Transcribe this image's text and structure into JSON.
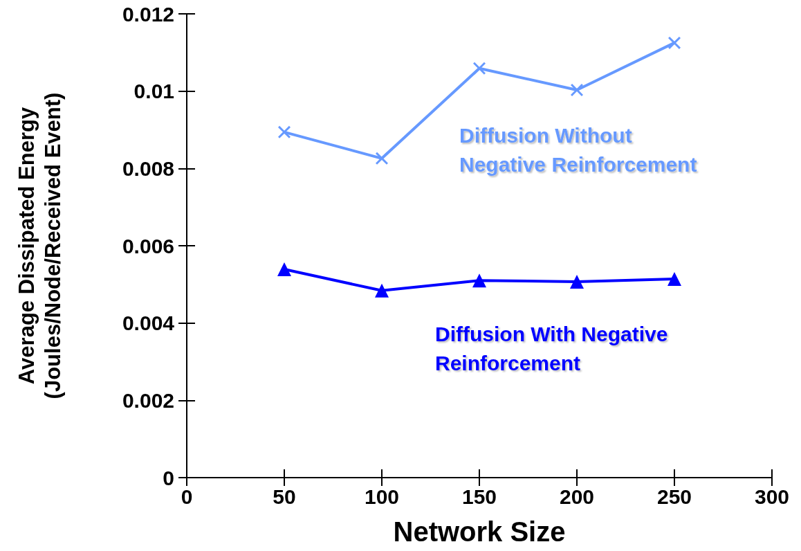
{
  "chart_data": {
    "type": "line",
    "xlabel": "Network Size",
    "ylabel": "Average Dissipated Energy\n(Joules/Node/Received Event)",
    "x": [
      50,
      100,
      150,
      200,
      250
    ],
    "series": [
      {
        "name": "Diffusion Without\nNegative Reinforcement",
        "color": "#6699ff",
        "marker": "cross",
        "values": [
          0.00894,
          0.00826,
          0.01059,
          0.01003,
          0.01125
        ]
      },
      {
        "name": "Diffusion With Negative\nReinforcement",
        "color": "#0000ff",
        "marker": "triangle",
        "values": [
          0.00539,
          0.00484,
          0.0051,
          0.00507,
          0.00514
        ]
      }
    ],
    "xlim": [
      0,
      300
    ],
    "xticks": [
      0,
      50,
      100,
      150,
      200,
      250,
      300
    ],
    "ylim": [
      0,
      0.012
    ],
    "yticks": [
      0,
      0.002,
      0.004,
      0.006,
      0.008,
      0.01,
      0.012
    ],
    "grid": false,
    "legend": false,
    "line_style": "solid"
  }
}
